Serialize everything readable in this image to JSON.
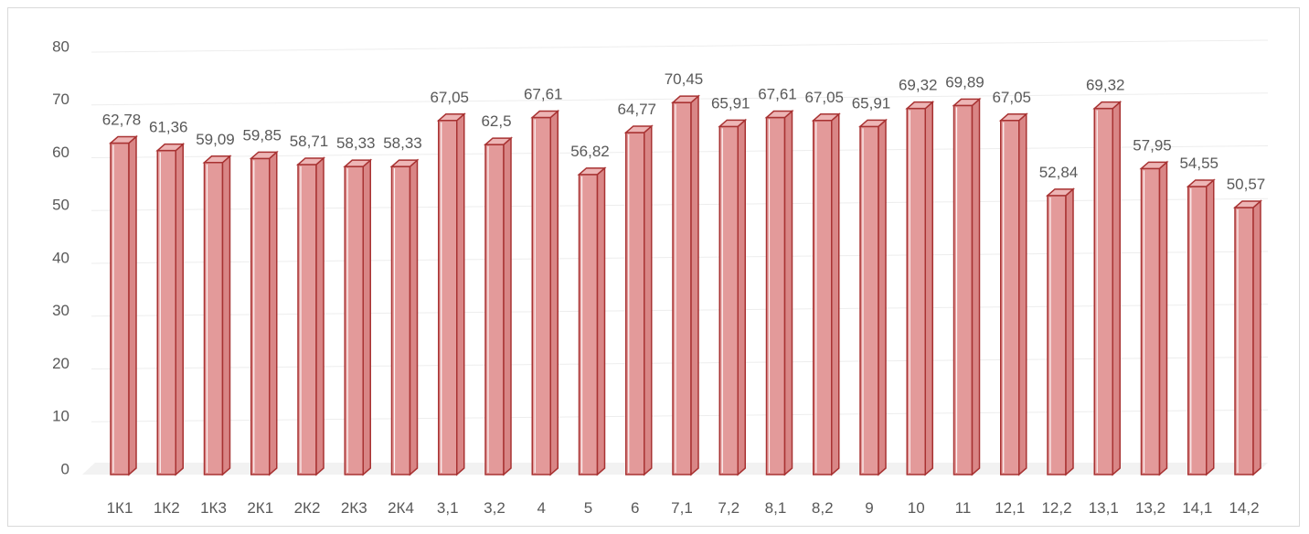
{
  "chart_data": {
    "type": "bar",
    "title": "",
    "xlabel": "",
    "ylabel": "",
    "ylim": [
      0,
      80
    ],
    "yticks": [
      "0",
      "10",
      "20",
      "30",
      "40",
      "50",
      "60",
      "70",
      "80"
    ],
    "grid": true,
    "three_d": true,
    "bar_color": "#e39a9a",
    "bar_edge_color": "#a83232",
    "categories": [
      "1К1",
      "1К2",
      "1К3",
      "2К1",
      "2К2",
      "2К3",
      "2К4",
      "3,1",
      "3,2",
      "4",
      "5",
      "6",
      "7,1",
      "7,2",
      "8,1",
      "8,2",
      "9",
      "10",
      "11",
      "12,1",
      "12,2",
      "13,1",
      "13,2",
      "14,1",
      "14,2"
    ],
    "values": [
      62.78,
      61.36,
      59.09,
      59.85,
      58.71,
      58.33,
      58.33,
      67.05,
      62.5,
      67.61,
      56.82,
      64.77,
      70.45,
      65.91,
      67.61,
      67.05,
      65.91,
      69.32,
      69.89,
      67.05,
      52.84,
      69.32,
      57.95,
      54.55,
      50.57
    ],
    "data_labels": [
      "62,78",
      "61,36",
      "59,09",
      "59,85",
      "58,71",
      "58,33",
      "58,33",
      "67,05",
      "62,5",
      "67,61",
      "56,82",
      "64,77",
      "70,45",
      "65,91",
      "67,61",
      "67,05",
      "65,91",
      "69,32",
      "69,89",
      "67,05",
      "52,84",
      "69,32",
      "57,95",
      "54,55",
      "50,57"
    ]
  }
}
